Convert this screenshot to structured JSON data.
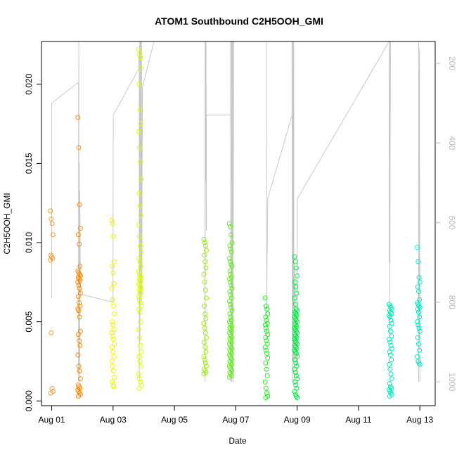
{
  "chart_data": {
    "type": "scatter",
    "title": "ATOM1 Southbound C2H5OOH_GMI",
    "xlabel": "Date",
    "ylabel": "C2H5OOH_GMI",
    "xlim": [
      "2016-07-31T16:00",
      "2016-08-13T12:00"
    ],
    "ylim": [
      -0.0003,
      0.0227
    ],
    "y2lim": [
      1060,
      145
    ],
    "x_ticks": [
      {
        "date": "2016-08-01",
        "label": "Aug 01"
      },
      {
        "date": "2016-08-03",
        "label": "Aug 03"
      },
      {
        "date": "2016-08-05",
        "label": "Aug 05"
      },
      {
        "date": "2016-08-07",
        "label": "Aug 07"
      },
      {
        "date": "2016-08-09",
        "label": "Aug 09"
      },
      {
        "date": "2016-08-11",
        "label": "Aug 11"
      },
      {
        "date": "2016-08-13",
        "label": "Aug 13"
      }
    ],
    "y_ticks": [
      "0.000",
      "0.005",
      "0.010",
      "0.015",
      "0.020"
    ],
    "y2_ticks": [
      "200",
      "400",
      "600",
      "800",
      "1000"
    ],
    "grid": false,
    "legend": "none",
    "point_style": "open-circle",
    "colors": {
      "aug01": "#ff9933",
      "aug02": "#ff8800",
      "aug03": "#f0f000",
      "aug04": "#ddff00",
      "aug06": "#99ee11",
      "aug07": "#66ee22",
      "aug08": "#22ee22",
      "aug09": "#00ee44",
      "aug12": "#00eebb",
      "aug13": "#00eecc",
      "pressure_line": "#c8c8c8"
    },
    "series": [
      {
        "color_key": "aug01",
        "x": "2016-08-01T00:00",
        "values": [
          0.012,
          0.0115,
          0.0112,
          0.0105,
          0.0092,
          0.0091,
          0.009,
          0.0089,
          0.0043,
          0.0008,
          0.0006,
          0.0005
        ]
      },
      {
        "color_key": "aug02",
        "x": "2016-08-01T21:30",
        "values": [
          0.0179,
          0.016,
          0.0124,
          0.0109,
          0.0105,
          0.0099,
          0.0085,
          0.0082,
          0.0081,
          0.008,
          0.0079,
          0.0078,
          0.0077,
          0.0076,
          0.0075,
          0.0073,
          0.0071,
          0.0068,
          0.0066,
          0.0062,
          0.006,
          0.0058,
          0.0057,
          0.0053,
          0.0044,
          0.0042,
          0.0038,
          0.0035,
          0.0029,
          0.0022,
          0.0019,
          0.0014,
          0.001,
          0.0009,
          0.0008,
          0.0007,
          0.0006,
          0.0005,
          0.0004,
          0.0003
        ]
      },
      {
        "color_key": "aug03",
        "x": "2016-08-03T00:00",
        "values": [
          0.0114,
          0.0112,
          0.0104,
          0.0088,
          0.0085,
          0.0081,
          0.0074,
          0.0071,
          0.0064,
          0.006,
          0.0055,
          0.005,
          0.0048,
          0.0045,
          0.0043,
          0.0041,
          0.0039,
          0.0036,
          0.0034,
          0.0031,
          0.0028,
          0.0025,
          0.0022,
          0.0019,
          0.0015,
          0.0012,
          0.001,
          0.0009
        ]
      },
      {
        "color_key": "aug04",
        "x": "2016-08-03T21:00",
        "values": [
          0.0222,
          0.0219,
          0.0217,
          0.021,
          0.02,
          0.0184,
          0.0175,
          0.017,
          0.016,
          0.0151,
          0.014,
          0.0131,
          0.0123,
          0.0117,
          0.0111,
          0.0104,
          0.0098,
          0.0094,
          0.009,
          0.0088,
          0.0085,
          0.0082,
          0.008,
          0.0079,
          0.0078,
          0.0077,
          0.0076,
          0.0075,
          0.0074,
          0.0073,
          0.0072,
          0.0071,
          0.007,
          0.0069,
          0.0068,
          0.0066,
          0.0064,
          0.0062,
          0.006,
          0.0058,
          0.0056,
          0.005,
          0.0045,
          0.004,
          0.0035,
          0.0031,
          0.0028,
          0.0025,
          0.0022,
          0.0017,
          0.0014,
          0.0012,
          0.001,
          0.0008
        ]
      },
      {
        "color_key": "aug06",
        "x": "2016-08-06T00:00",
        "values": [
          0.0102,
          0.01,
          0.0098,
          0.0095,
          0.0092,
          0.0088,
          0.0084,
          0.008,
          0.0075,
          0.007,
          0.0065,
          0.006,
          0.0055,
          0.0052,
          0.0049,
          0.0046,
          0.0043,
          0.004,
          0.0037,
          0.0034,
          0.0031,
          0.0028,
          0.0026,
          0.0024,
          0.0022,
          0.002,
          0.0019,
          0.0018,
          0.0017
        ]
      },
      {
        "color_key": "aug07",
        "x": "2016-08-06T20:00",
        "values": [
          0.0112,
          0.011,
          0.0105,
          0.01,
          0.0098,
          0.0096,
          0.0094,
          0.009,
          0.0088,
          0.0086,
          0.0085,
          0.0082,
          0.008,
          0.0078,
          0.0077,
          0.0075,
          0.0073,
          0.0071,
          0.0069,
          0.0067,
          0.0065,
          0.0063,
          0.0061,
          0.0059,
          0.0057,
          0.0055,
          0.0053,
          0.0051,
          0.005,
          0.0049,
          0.0048,
          0.0047,
          0.0046,
          0.0045,
          0.0044,
          0.0043,
          0.0042,
          0.0041,
          0.004,
          0.0039,
          0.0038,
          0.0037,
          0.0036,
          0.0035,
          0.0034,
          0.0033,
          0.0032,
          0.0031,
          0.003,
          0.0029,
          0.0028,
          0.0027,
          0.0026,
          0.0025,
          0.0024,
          0.0023,
          0.0022,
          0.0021,
          0.002,
          0.0019,
          0.0018,
          0.0017,
          0.0016,
          0.0015
        ]
      },
      {
        "color_key": "aug08",
        "x": "2016-08-08T00:00",
        "values": [
          0.0065,
          0.006,
          0.0058,
          0.0055,
          0.0053,
          0.0051,
          0.0049,
          0.0048,
          0.0046,
          0.0044,
          0.0042,
          0.004,
          0.0038,
          0.0036,
          0.0034,
          0.0032,
          0.003,
          0.0027,
          0.0024,
          0.002,
          0.0016,
          0.0012,
          0.0008,
          0.0005,
          0.0003,
          0.0002
        ]
      },
      {
        "color_key": "aug09",
        "x": "2016-08-08T23:00",
        "values": [
          0.0091,
          0.0088,
          0.0084,
          0.0079,
          0.0075,
          0.0072,
          0.0068,
          0.0065,
          0.0061,
          0.0058,
          0.0057,
          0.0056,
          0.0055,
          0.0054,
          0.0053,
          0.0052,
          0.0051,
          0.005,
          0.0049,
          0.0048,
          0.0047,
          0.0046,
          0.0045,
          0.0044,
          0.0043,
          0.0042,
          0.0041,
          0.004,
          0.0039,
          0.0038,
          0.0037,
          0.0036,
          0.0035,
          0.0034,
          0.0033,
          0.0032,
          0.0031,
          0.003,
          0.0028,
          0.0026,
          0.0024,
          0.0022,
          0.002,
          0.0018,
          0.0016,
          0.0014,
          0.0012,
          0.001,
          0.0008,
          0.0006,
          0.0004,
          0.0003,
          0.0002
        ]
      },
      {
        "color_key": "aug12",
        "x": "2016-08-12T01:00",
        "values": [
          0.0061,
          0.006,
          0.0059,
          0.0058,
          0.0057,
          0.0056,
          0.0055,
          0.0054,
          0.0053,
          0.0051,
          0.0049,
          0.0047,
          0.0044,
          0.0041,
          0.0039,
          0.0037,
          0.0035,
          0.0033,
          0.0031,
          0.0029,
          0.0026,
          0.0023,
          0.002,
          0.0017,
          0.0014,
          0.0011,
          0.0009,
          0.0008,
          0.0007,
          0.0006,
          0.0005,
          0.0004,
          0.0003
        ]
      },
      {
        "color_key": "aug13",
        "x": "2016-08-12T23:00",
        "values": [
          0.0097,
          0.0088,
          0.0078,
          0.0075,
          0.0072,
          0.0069,
          0.0064,
          0.0062,
          0.0061,
          0.006,
          0.0059,
          0.0058,
          0.0056,
          0.0053,
          0.005,
          0.0048,
          0.0046,
          0.0044,
          0.004,
          0.0036,
          0.0032,
          0.0028,
          0.0025,
          0.0024,
          0.0023
        ]
      }
    ],
    "pressure_track": [
      [
        "2016-08-01T00:00",
        790
      ],
      [
        "2016-08-01T00:00",
        300
      ],
      [
        "2016-08-01T20:00",
        250
      ],
      [
        "2016-08-01T21:00",
        250
      ],
      [
        "2016-08-01T21:00",
        1000
      ],
      [
        "2016-08-01T21:12",
        120
      ],
      [
        "2016-08-01T21:24",
        980
      ],
      [
        "2016-08-01T21:36",
        450
      ],
      [
        "2016-08-01T21:48",
        1000
      ],
      [
        "2016-08-01T22:00",
        520
      ],
      [
        "2016-08-01T22:30",
        780
      ],
      [
        "2016-08-03T00:00",
        800
      ],
      [
        "2016-08-03T00:00",
        590
      ],
      [
        "2016-08-03T00:10",
        330
      ],
      [
        "2016-08-03T20:00",
        214
      ],
      [
        "2016-08-03T20:30",
        170
      ],
      [
        "2016-08-03T20:30",
        1000
      ],
      [
        "2016-08-03T20:45",
        120
      ],
      [
        "2016-08-03T21:00",
        900
      ],
      [
        "2016-08-03T21:15",
        120
      ],
      [
        "2016-08-03T21:30",
        780
      ],
      [
        "2016-08-03T21:45",
        120
      ],
      [
        "2016-08-03T22:00",
        800
      ],
      [
        "2016-08-03T22:15",
        120
      ],
      [
        "2016-08-03T22:30",
        780
      ],
      [
        "2016-08-03T23:00",
        260
      ],
      [
        "2016-08-04T08:00",
        120
      ],
      [
        "2016-08-06T00:00",
        120
      ],
      [
        "2016-08-06T00:00",
        1000
      ],
      [
        "2016-08-06T00:15",
        120
      ],
      [
        "2016-08-06T00:30",
        500
      ],
      [
        "2016-08-06T00:45",
        120
      ],
      [
        "2016-08-06T01:00",
        620
      ],
      [
        "2016-08-06T01:00",
        330
      ],
      [
        "2016-08-06T20:00",
        330
      ],
      [
        "2016-08-06T20:00",
        120
      ],
      [
        "2016-08-06T20:10",
        1000
      ],
      [
        "2016-08-06T20:20",
        120
      ],
      [
        "2016-08-06T20:30",
        900
      ],
      [
        "2016-08-06T20:40",
        120
      ],
      [
        "2016-08-06T20:50",
        1000
      ],
      [
        "2016-08-06T21:00",
        120
      ],
      [
        "2016-08-06T21:10",
        780
      ],
      [
        "2016-08-06T21:20",
        120
      ],
      [
        "2016-08-06T21:30",
        980
      ],
      [
        "2016-08-06T21:40",
        120
      ],
      [
        "2016-08-06T21:50",
        1000
      ],
      [
        "2016-08-06T22:00",
        620
      ],
      [
        "2016-08-06T22:30",
        120
      ],
      [
        "2016-08-08T00:00",
        120
      ],
      [
        "2016-08-08T00:00",
        223
      ],
      [
        "2016-08-08T00:10",
        560
      ],
      [
        "2016-08-08T00:20",
        890
      ],
      [
        "2016-08-08T00:20",
        760
      ],
      [
        "2016-08-08T01:00",
        540
      ],
      [
        "2016-08-08T20:00",
        330
      ],
      [
        "2016-08-08T20:00",
        120
      ],
      [
        "2016-08-08T20:10",
        1000
      ],
      [
        "2016-08-08T20:20",
        120
      ],
      [
        "2016-08-08T20:30",
        900
      ],
      [
        "2016-08-08T20:40",
        120
      ],
      [
        "2016-08-08T20:50",
        950
      ],
      [
        "2016-08-08T21:00",
        120
      ],
      [
        "2016-08-08T21:10",
        700
      ],
      [
        "2016-08-08T21:20",
        120
      ],
      [
        "2016-08-08T21:30",
        1000
      ],
      [
        "2016-08-08T21:40",
        700
      ],
      [
        "2016-08-09T00:00",
        1000
      ],
      [
        "2016-08-09T00:10",
        540
      ],
      [
        "2016-08-12T00:00",
        120
      ],
      [
        "2016-08-12T00:00",
        700
      ],
      [
        "2016-08-12T00:15",
        120
      ],
      [
        "2016-08-12T00:30",
        880
      ],
      [
        "2016-08-12T00:30",
        760
      ],
      [
        "2016-08-12T01:00",
        120
      ],
      [
        "2016-08-12T23:00",
        120
      ],
      [
        "2016-08-12T23:00",
        1000
      ],
      [
        "2016-08-12T23:15",
        220
      ],
      [
        "2016-08-12T23:30",
        900
      ],
      [
        "2016-08-12T23:45",
        160
      ],
      [
        "2016-08-13T00:00",
        1000
      ],
      [
        "2016-08-13T00:00",
        700
      ]
    ]
  }
}
